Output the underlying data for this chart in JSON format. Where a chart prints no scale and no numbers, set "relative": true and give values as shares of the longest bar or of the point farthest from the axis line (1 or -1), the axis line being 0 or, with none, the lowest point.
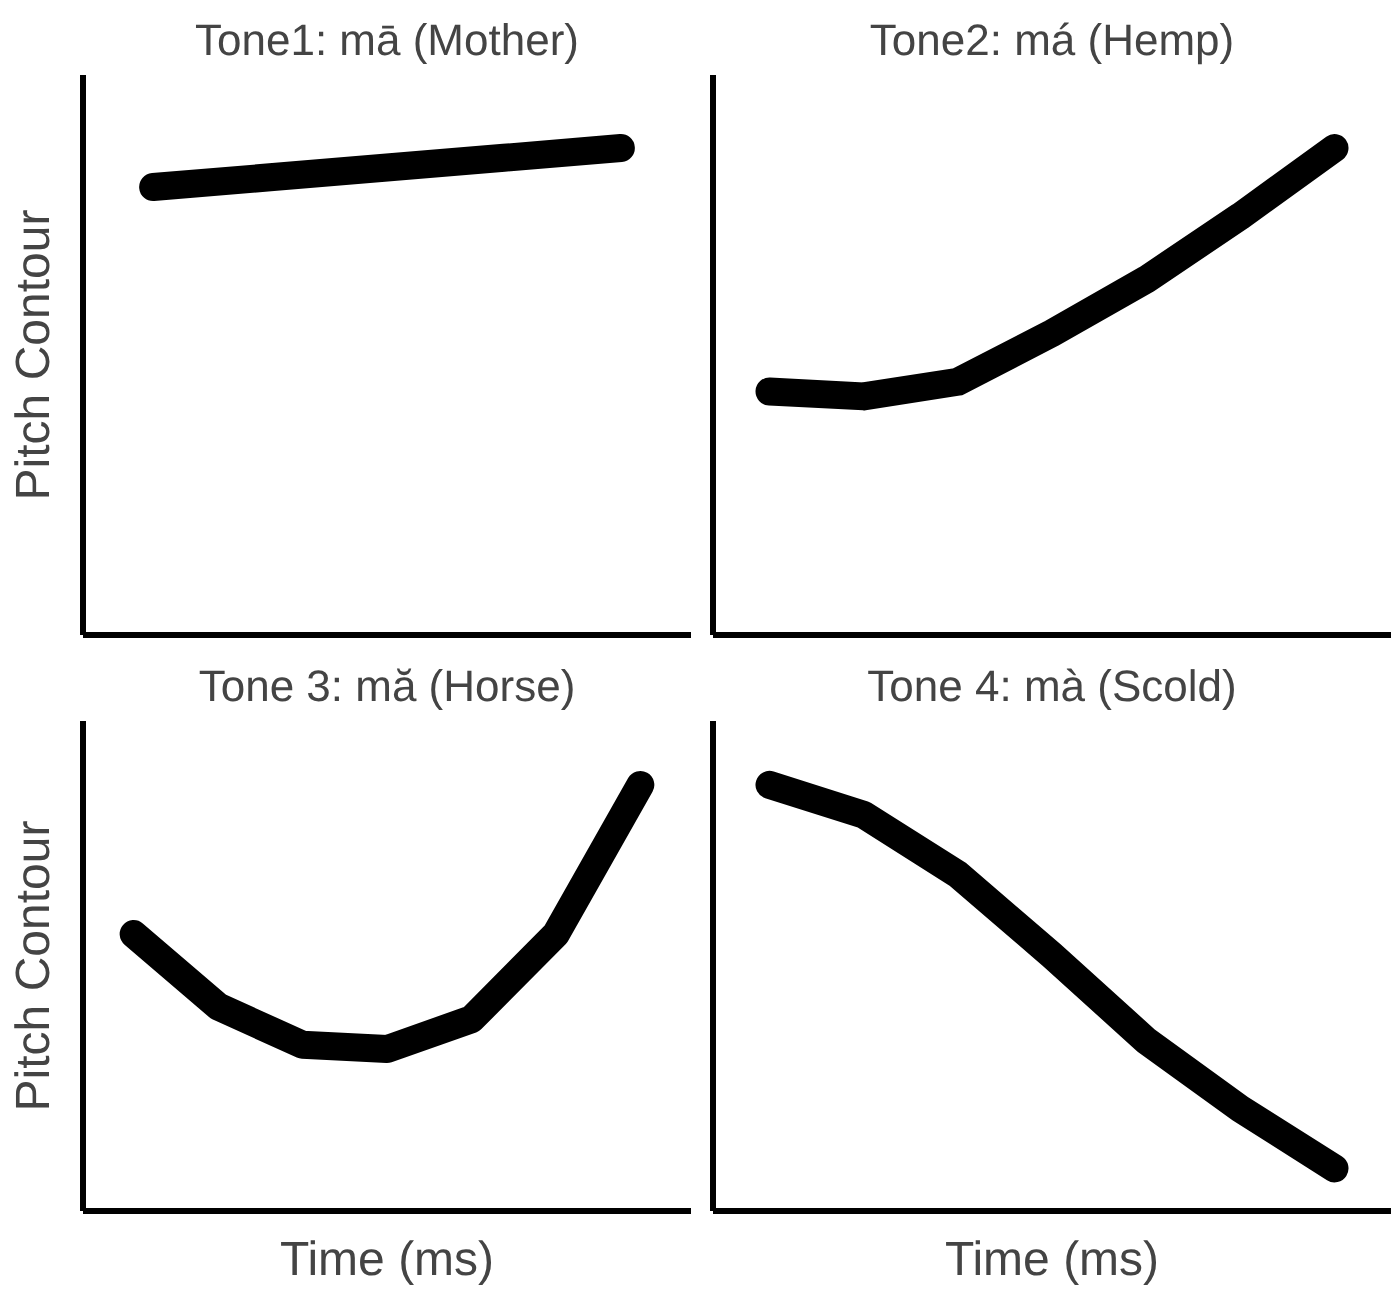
{
  "chart_data": [
    {
      "type": "line",
      "title": "Tone1: mā (Mother)",
      "ylabel": "Pitch Contour",
      "categories": [
        null,
        null,
        null,
        null,
        null
      ],
      "values": [
        0.92,
        0.94,
        0.96,
        0.98,
        1.0
      ],
      "color": "#000000",
      "relative": true,
      "tick_labels": false,
      "grid": false
    },
    {
      "type": "line",
      "title": "Tone2: má (Hemp)",
      "categories": [
        null,
        null,
        null,
        null,
        null,
        null,
        null
      ],
      "values": [
        0.5,
        0.49,
        0.52,
        0.62,
        0.73,
        0.86,
        1.0
      ],
      "color": "#000000",
      "relative": true,
      "tick_labels": false,
      "grid": false
    },
    {
      "type": "line",
      "title": "Tone 3: mă (Horse)",
      "ylabel": "Pitch Contour",
      "xlabel": "Time (ms)",
      "categories": [
        null,
        null,
        null,
        null,
        null,
        null,
        null
      ],
      "values": [
        0.65,
        0.48,
        0.39,
        0.38,
        0.45,
        0.65,
        1.0
      ],
      "color": "#000000",
      "relative": true,
      "tick_labels": false,
      "grid": false
    },
    {
      "type": "line",
      "title": "Tone 4: mà (Scold)",
      "xlabel": "Time (ms)",
      "categories": [
        null,
        null,
        null,
        null,
        null,
        null,
        null
      ],
      "values": [
        1.0,
        0.93,
        0.79,
        0.6,
        0.4,
        0.24,
        0.1
      ],
      "color": "#000000",
      "relative": true,
      "tick_labels": false,
      "grid": false
    }
  ]
}
